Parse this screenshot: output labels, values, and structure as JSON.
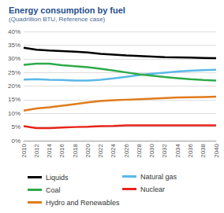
{
  "chart_data": {
    "type": "line",
    "title": "Energy consumption by fuel",
    "subtitle": "(Quadrillion BTU, Reference case)",
    "categories": [
      "2010",
      "2012",
      "2014",
      "2016",
      "2018",
      "2020",
      "2022",
      "2024",
      "2026",
      "2028",
      "2030",
      "2032",
      "2034",
      "2036",
      "2038",
      "2040"
    ],
    "series": [
      {
        "name": "Liquids",
        "color": "#000000",
        "values": [
          34,
          33.3,
          33,
          32.8,
          32.6,
          32.3,
          31.8,
          31.5,
          31.2,
          31,
          30.8,
          30.6,
          30.5,
          30.4,
          30.3,
          30.2
        ]
      },
      {
        "name": "Natural gas",
        "color": "#5bb8e8",
        "values": [
          22.4,
          22.5,
          22.3,
          22.2,
          22,
          22,
          22.3,
          22.8,
          23.4,
          24,
          24.5,
          24.9,
          25.3,
          25.6,
          25.8,
          26
        ]
      },
      {
        "name": "Coal",
        "color": "#2eaa4a",
        "values": [
          27.8,
          28.2,
          28.2,
          27.6,
          27.3,
          26.9,
          26.3,
          25.7,
          25,
          24.3,
          23.8,
          23.3,
          22.9,
          22.5,
          22.2,
          22
        ]
      },
      {
        "name": "Nuclear",
        "color": "#e8241a",
        "values": [
          5.3,
          4.6,
          4.6,
          4.8,
          5,
          5.1,
          5.3,
          5.4,
          5.6,
          5.6,
          5.6,
          5.6,
          5.6,
          5.6,
          5.6,
          5.6
        ]
      },
      {
        "name": "Hydro and Renewables",
        "color": "#e07b1a",
        "values": [
          11,
          11.8,
          12.2,
          12.8,
          13.4,
          14,
          14.5,
          14.8,
          15,
          15.2,
          15.4,
          15.6,
          15.8,
          15.9,
          16,
          16.1
        ]
      }
    ],
    "ylim": [
      0,
      40
    ],
    "yticks": [
      {
        "value": 0,
        "label": "0%"
      },
      {
        "value": 5,
        "label": "5%"
      },
      {
        "value": 10,
        "label": "10%"
      },
      {
        "value": 15,
        "label": "15%"
      },
      {
        "value": 20,
        "label": "20%"
      },
      {
        "value": 25,
        "label": "25%"
      },
      {
        "value": 30,
        "label": "30%"
      },
      {
        "value": 35,
        "label": "35%"
      },
      {
        "value": 40,
        "label": "40%"
      }
    ],
    "grid": true,
    "legend": "bottom"
  }
}
